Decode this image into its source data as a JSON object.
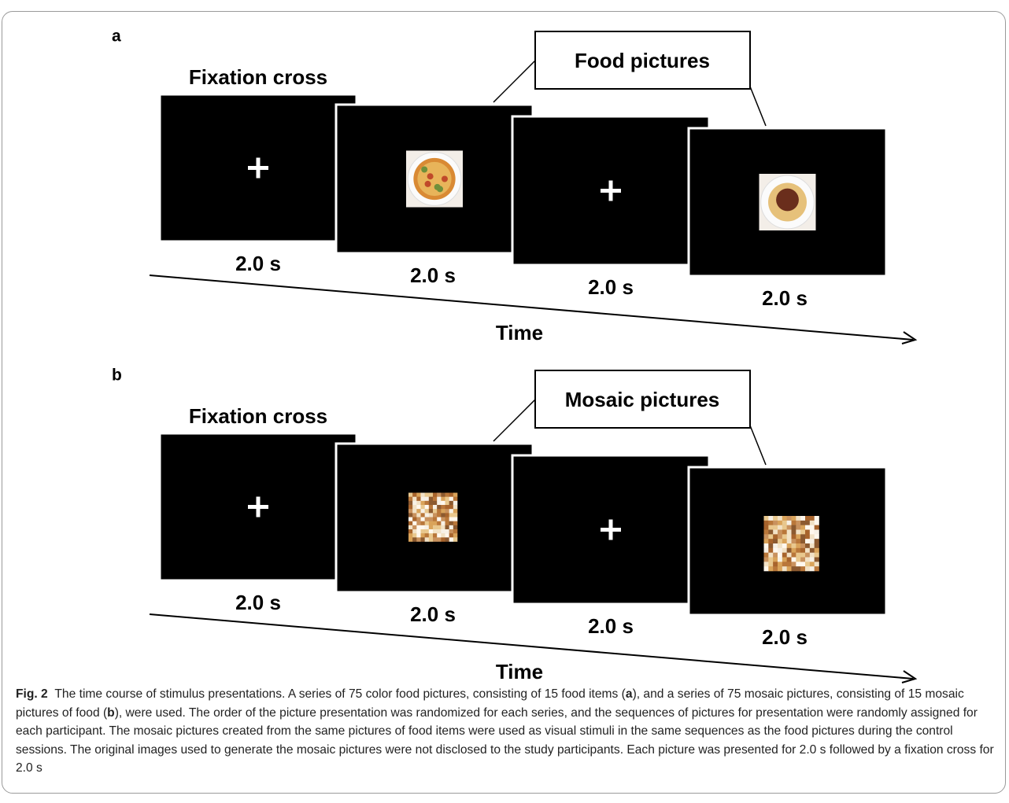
{
  "panels": [
    {
      "label": "a",
      "fixation_label": "Fixation cross",
      "callout": "Food pictures",
      "stimulus": "food",
      "durations": [
        "2.0 s",
        "2.0 s",
        "2.0 s",
        "2.0 s"
      ],
      "axis_label": "Time"
    },
    {
      "label": "b",
      "fixation_label": "Fixation cross",
      "callout": "Mosaic pictures",
      "stimulus": "mosaic",
      "durations": [
        "2.0 s",
        "2.0 s",
        "2.0 s",
        "2.0 s"
      ],
      "axis_label": "Time"
    }
  ],
  "caption": {
    "label": "Fig. 2",
    "parts": [
      "The time course of stimulus presentations. A series of 75 color food pictures, consisting of 15 food items (",
      "a",
      "), and a series of 75 mosaic pictures, consisting of 15 mosaic pictures of food (",
      "b",
      "), were used. The order of the picture presentation was randomized for each series, and the sequences of pictures for presentation were randomly assigned for each participant. The mosaic pictures created from the same pictures of food items were used as visual stimuli in the same sequences as the food pictures during the control sessions. The original images used to generate the mosaic pictures were not disclosed to the study participants. Each picture was presented for 2.0 s followed by a fixation cross for 2.0 s"
    ]
  }
}
